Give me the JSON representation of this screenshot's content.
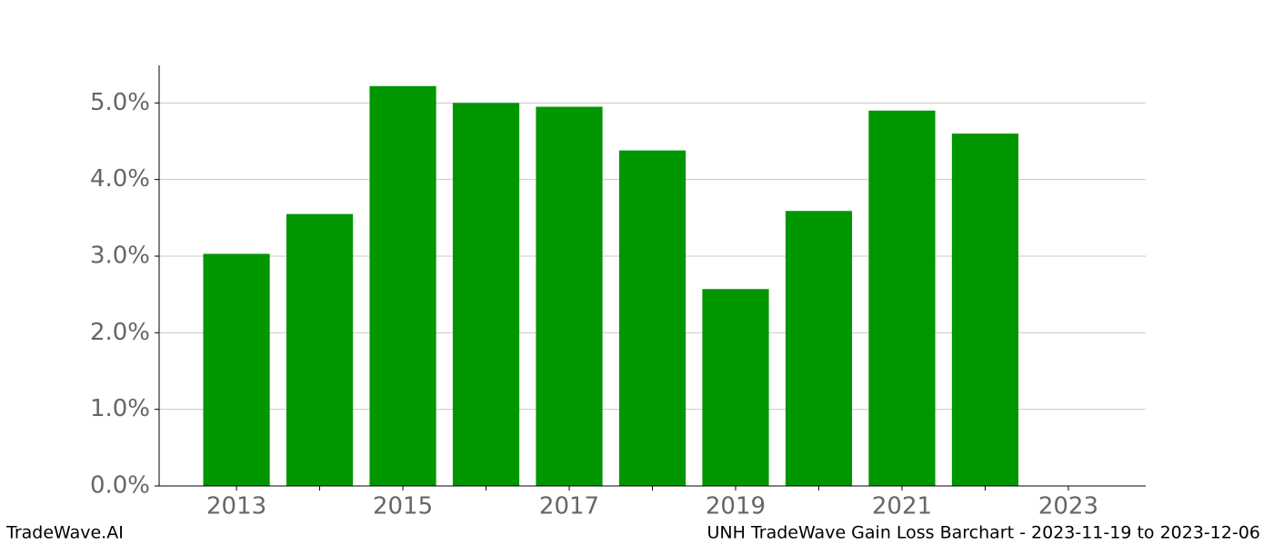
{
  "chart_data": {
    "type": "bar",
    "title": "UNH TradeWave Gain Loss Barchart - 2023-11-19 to 2023-12-06",
    "watermark": "TradeWave.AI",
    "x": [
      2013,
      2014,
      2015,
      2016,
      2017,
      2018,
      2019,
      2020,
      2021,
      2022
    ],
    "values": [
      3.03,
      3.55,
      5.22,
      5.0,
      4.95,
      4.38,
      2.57,
      3.59,
      4.9,
      4.6
    ],
    "color": "#009600",
    "bar_width": 0.8,
    "xlim": [
      2012.07,
      2023.93
    ],
    "xticks": [
      2013,
      2015,
      2017,
      2019,
      2021,
      2023
    ],
    "minor_xticks": [
      2014,
      2016,
      2018,
      2020,
      2022
    ],
    "ylim": [
      0,
      5.49
    ],
    "yticks": [
      {
        "value": 0,
        "label": "0.0%"
      },
      {
        "value": 1,
        "label": "1.0%"
      },
      {
        "value": 2,
        "label": "2.0%"
      },
      {
        "value": 3,
        "label": "3.0%"
      },
      {
        "value": 4,
        "label": "4.0%"
      },
      {
        "value": 5,
        "label": "5.0%"
      }
    ],
    "grid": true
  }
}
